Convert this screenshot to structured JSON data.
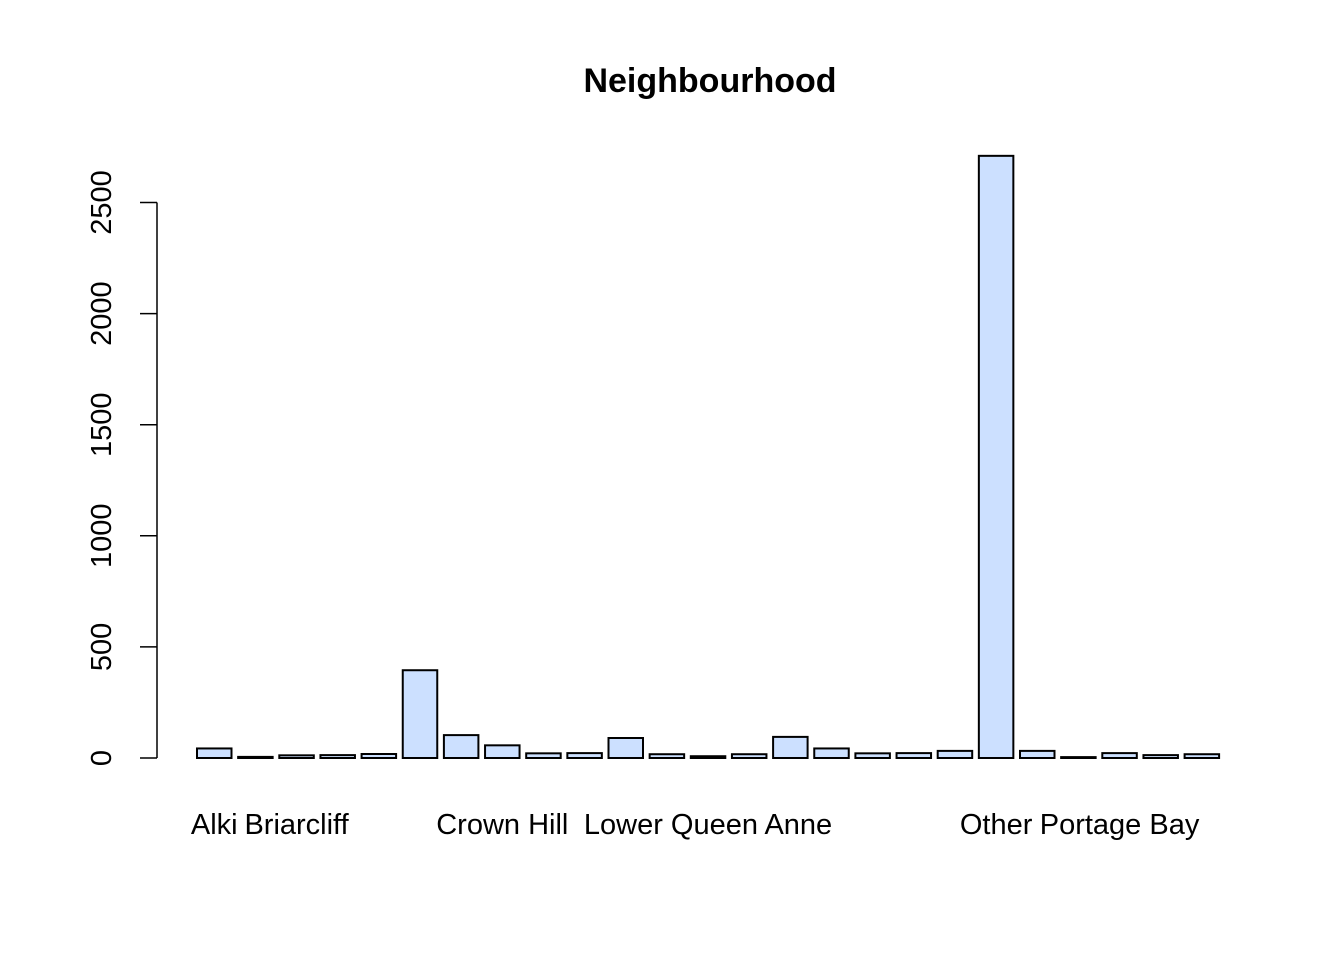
{
  "chart_data": {
    "type": "bar",
    "title": "Neighbourhood",
    "xlabel": "",
    "ylabel": "",
    "ylim": [
      0,
      2700
    ],
    "y_ticks": [
      0,
      500,
      1000,
      1500,
      2000,
      2500
    ],
    "bar_color": "#cce0ff",
    "grid": false,
    "categories_shown": [
      {
        "index": 0,
        "label": "Alki"
      },
      {
        "index": 2,
        "label": "Briarcliff"
      },
      {
        "index": 7,
        "label": "Crown Hill"
      },
      {
        "index": 12,
        "label": "Lower Queen Anne"
      },
      {
        "index": 19,
        "label": "Other"
      },
      {
        "index": 22,
        "label": "Portage Bay"
      }
    ],
    "values": [
      43,
      5,
      12,
      13,
      18,
      395,
      103,
      57,
      21,
      22,
      90,
      17,
      8,
      17,
      95,
      43,
      21,
      22,
      32,
      2710,
      32,
      4,
      22,
      13,
      17
    ]
  }
}
